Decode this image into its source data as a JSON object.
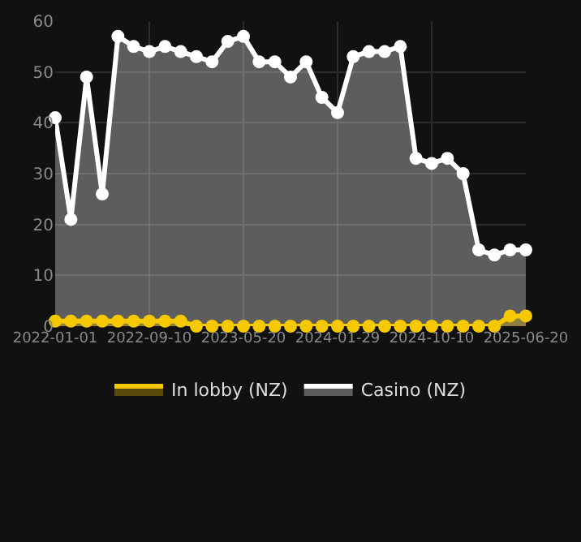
{
  "chart_data": {
    "type": "area",
    "categories": [
      "2022-01-01",
      null,
      null,
      null,
      null,
      null,
      "2022-09-10",
      null,
      null,
      null,
      null,
      null,
      "2023-05-20",
      null,
      null,
      null,
      null,
      null,
      "2024-01-29",
      null,
      null,
      null,
      null,
      null,
      "2024-10-10",
      null,
      null,
      null,
      null,
      null,
      "2025-06-20"
    ],
    "series": [
      {
        "name": "In lobby (NZ)",
        "color": "#f5c800",
        "values": [
          1,
          1,
          1,
          1,
          1,
          1,
          1,
          1,
          1,
          0,
          0,
          0,
          0,
          0,
          0,
          0,
          0,
          0,
          0,
          0,
          0,
          0,
          0,
          0,
          0,
          0,
          0,
          0,
          0,
          2,
          2
        ]
      },
      {
        "name": "Casino (NZ)",
        "color": "#ffffff",
        "values": [
          41,
          21,
          49,
          26,
          57,
          55,
          54,
          55,
          54,
          53,
          52,
          56,
          57,
          52,
          52,
          49,
          52,
          45,
          42,
          53,
          54,
          54,
          55,
          33,
          32,
          33,
          30,
          15,
          14,
          15,
          15
        ]
      }
    ],
    "ylim": [
      0,
      60
    ],
    "yticks": [
      0,
      10,
      20,
      30,
      40,
      50,
      60
    ],
    "grid": true,
    "legend": "bottom",
    "marker": "circle"
  }
}
